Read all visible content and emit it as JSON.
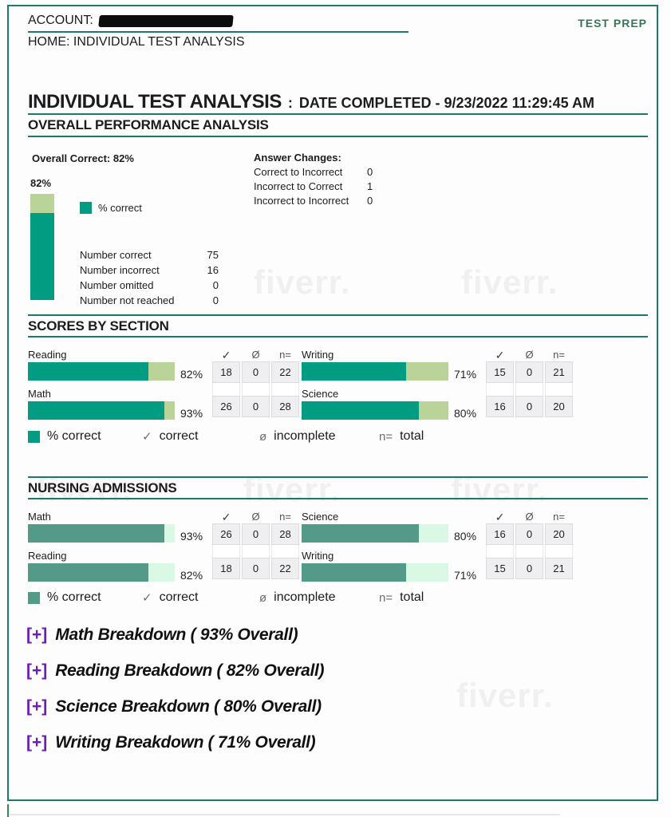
{
  "watermark": "fiverr.",
  "header": {
    "account_label": "ACCOUNT:",
    "home_label": "HOME: INDIVIDUAL TEST ANALYSIS",
    "brand": "TEST PREP"
  },
  "title": {
    "main": "INDIVIDUAL TEST ANALYSIS",
    "colon": ":",
    "date": "DATE COMPLETED - 9/23/2022 11:29:45 AM"
  },
  "overall": {
    "section_title": "OVERALL PERFORMANCE ANALYSIS",
    "overall_correct_label": "Overall Correct: 82%",
    "percent_label": "82%",
    "percent_value": 82,
    "legend_label": "% correct",
    "stats": [
      {
        "label": "Number correct",
        "value": "75"
      },
      {
        "label": "Number incorrect",
        "value": "16"
      },
      {
        "label": "Number omitted",
        "value": "0"
      },
      {
        "label": "Number not reached",
        "value": "0"
      }
    ],
    "answer_changes": {
      "title": "Answer Changes:",
      "rows": [
        {
          "label": "Correct to Incorrect",
          "value": "0"
        },
        {
          "label": "Incorrect to Correct",
          "value": "1"
        },
        {
          "label": "Incorrect to Incorrect",
          "value": "0"
        }
      ]
    }
  },
  "table_headers": {
    "correct": "✓",
    "incomplete": "Ø",
    "total": "n="
  },
  "scores_by_section": {
    "section_title": "SCORES BY SECTION",
    "columns": [
      {
        "rows": [
          {
            "label": "Reading",
            "percent": 82,
            "percent_label": "82%",
            "correct": "18",
            "incomplete": "0",
            "total": "22"
          },
          {
            "label": "Math",
            "percent": 93,
            "percent_label": "93%",
            "correct": "26",
            "incomplete": "0",
            "total": "28"
          }
        ]
      },
      {
        "rows": [
          {
            "label": "Writing",
            "percent": 71,
            "percent_label": "71%",
            "correct": "15",
            "incomplete": "0",
            "total": "21"
          },
          {
            "label": "Science",
            "percent": 80,
            "percent_label": "80%",
            "correct": "16",
            "incomplete": "0",
            "total": "20"
          }
        ]
      }
    ],
    "legend": {
      "pct": "% correct",
      "correct_sym": "✓",
      "correct": "correct",
      "incomplete_sym": "ø",
      "incomplete": "incomplete",
      "total_sym": "n=",
      "total": "total"
    }
  },
  "nursing_admissions": {
    "section_title": "NURSING ADMISSIONS",
    "columns": [
      {
        "rows": [
          {
            "label": "Math",
            "percent": 93,
            "percent_label": "93%",
            "correct": "26",
            "incomplete": "0",
            "total": "28"
          },
          {
            "label": "Reading",
            "percent": 82,
            "percent_label": "82%",
            "correct": "18",
            "incomplete": "0",
            "total": "22"
          }
        ]
      },
      {
        "rows": [
          {
            "label": "Science",
            "percent": 80,
            "percent_label": "80%",
            "correct": "16",
            "incomplete": "0",
            "total": "20"
          },
          {
            "label": "Writing",
            "percent": 71,
            "percent_label": "71%",
            "correct": "15",
            "incomplete": "0",
            "total": "21"
          }
        ]
      }
    ],
    "legend": {
      "pct": "% correct",
      "correct_sym": "✓",
      "correct": "correct",
      "incomplete_sym": "ø",
      "incomplete": "incomplete",
      "total_sym": "n=",
      "total": "total"
    }
  },
  "breakdowns": [
    {
      "expander": "[+]",
      "label": "Math Breakdown ( 93% Overall)"
    },
    {
      "expander": "[+]",
      "label": "Reading Breakdown ( 82% Overall)"
    },
    {
      "expander": "[+]",
      "label": "Science Breakdown ( 80% Overall)"
    },
    {
      "expander": "[+]",
      "label": "Writing Breakdown ( 71% Overall)"
    }
  ],
  "colors": {
    "accent_teal": "#1a7a6a",
    "bar_correct": "#019c82",
    "bar_remainder": "#bad399",
    "nursing_bar_correct": "#549a88",
    "nursing_bar_remainder": "#d9f8e5",
    "brand_green": "#2f7b51",
    "expander_purple": "#6d1cb5"
  },
  "chart_data": [
    {
      "type": "bar",
      "title": "Overall Correct",
      "categories": [
        "Overall"
      ],
      "values": [
        82
      ],
      "ylim": [
        0,
        100
      ],
      "ylabel": "% correct",
      "legend": [
        "% correct"
      ]
    },
    {
      "type": "bar",
      "title": "Scores by Section",
      "categories": [
        "Reading",
        "Math",
        "Writing",
        "Science"
      ],
      "values": [
        82,
        93,
        71,
        80
      ],
      "xlim": [
        0,
        100
      ],
      "series_detail": [
        {
          "name": "Reading",
          "correct": 18,
          "incomplete": 0,
          "total": 22
        },
        {
          "name": "Math",
          "correct": 26,
          "incomplete": 0,
          "total": 28
        },
        {
          "name": "Writing",
          "correct": 15,
          "incomplete": 0,
          "total": 21
        },
        {
          "name": "Science",
          "correct": 16,
          "incomplete": 0,
          "total": 20
        }
      ]
    },
    {
      "type": "bar",
      "title": "Nursing Admissions",
      "categories": [
        "Math",
        "Reading",
        "Science",
        "Writing"
      ],
      "values": [
        93,
        82,
        80,
        71
      ],
      "xlim": [
        0,
        100
      ],
      "series_detail": [
        {
          "name": "Math",
          "correct": 26,
          "incomplete": 0,
          "total": 28
        },
        {
          "name": "Reading",
          "correct": 18,
          "incomplete": 0,
          "total": 22
        },
        {
          "name": "Science",
          "correct": 16,
          "incomplete": 0,
          "total": 20
        },
        {
          "name": "Writing",
          "correct": 15,
          "incomplete": 0,
          "total": 21
        }
      ]
    }
  ]
}
